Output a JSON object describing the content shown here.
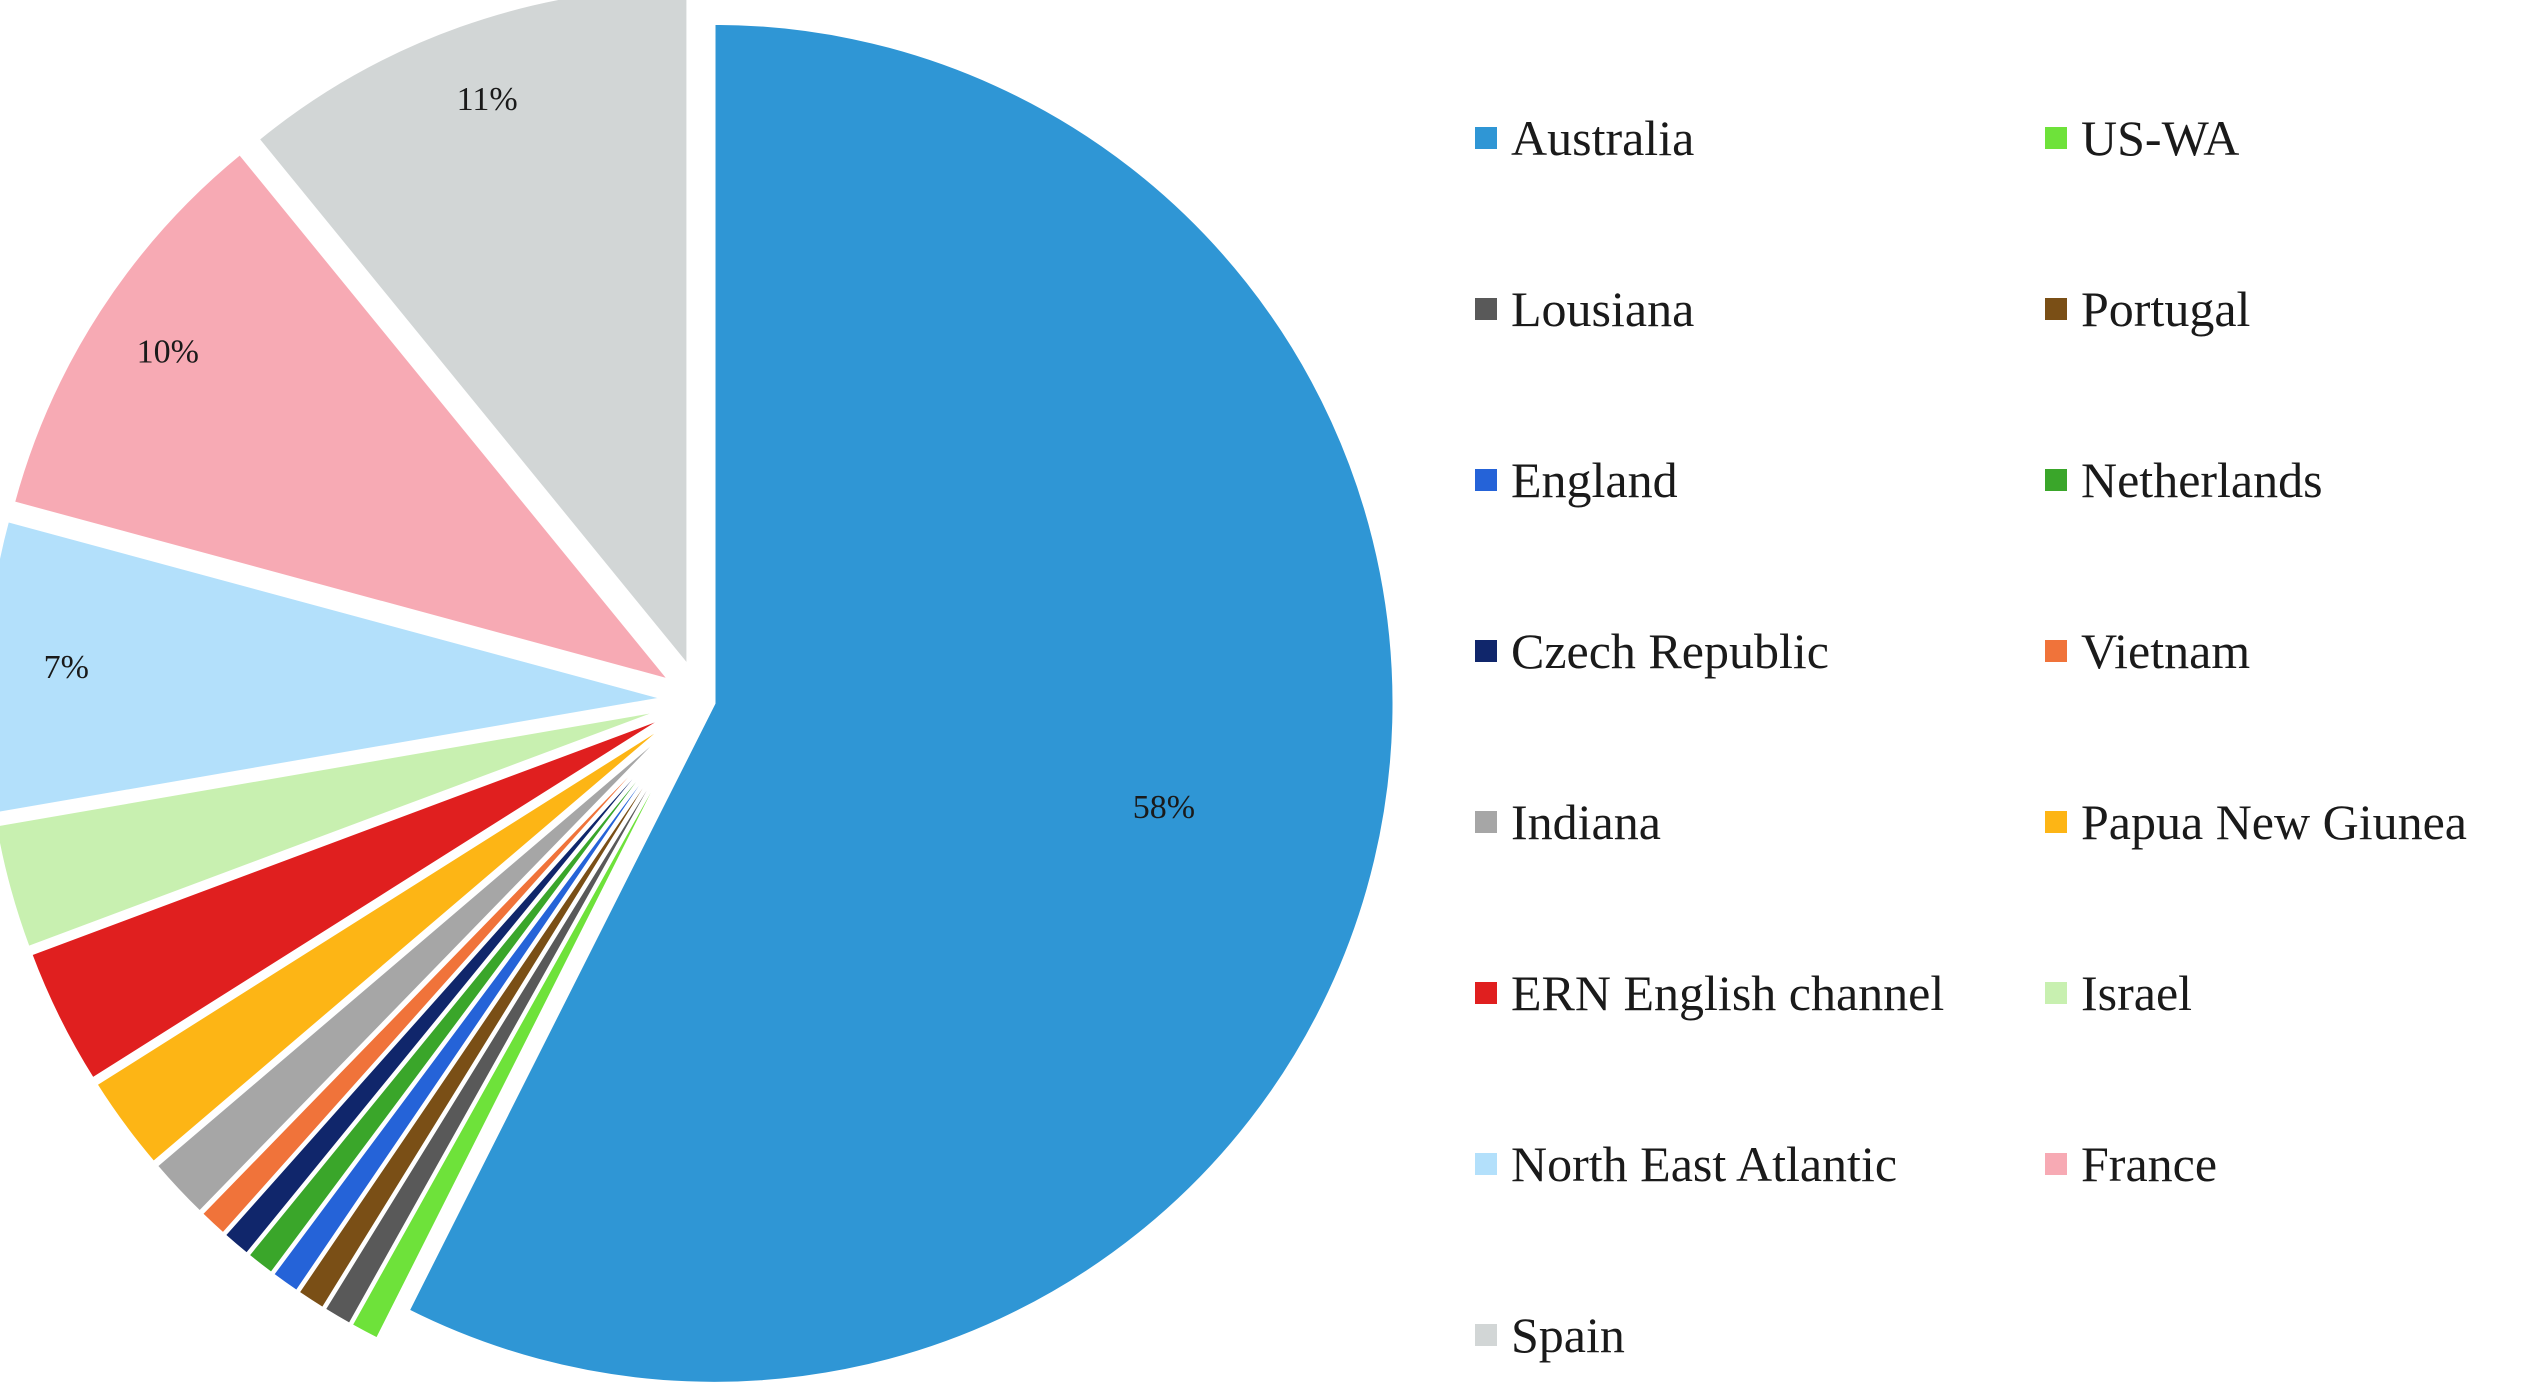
{
  "chart_data": {
    "type": "pie",
    "title": "",
    "slices": [
      {
        "name": "Australia",
        "value": 58,
        "label": "58%",
        "color": "#2f96d5",
        "exploded": false
      },
      {
        "name": "US-WA",
        "value": 0.7,
        "label": "",
        "color": "#6ee23a",
        "exploded": true
      },
      {
        "name": "Lousiana",
        "value": 0.7,
        "label": "",
        "color": "#595959",
        "exploded": true
      },
      {
        "name": "Portugal",
        "value": 0.7,
        "label": "",
        "color": "#7a4f16",
        "exploded": true
      },
      {
        "name": "England",
        "value": 0.7,
        "label": "",
        "color": "#2563d8",
        "exploded": true
      },
      {
        "name": "Netherlands",
        "value": 0.7,
        "label": "",
        "color": "#3aa62a",
        "exploded": true
      },
      {
        "name": "Czech Republic",
        "value": 0.7,
        "label": "",
        "color": "#10266b",
        "exploded": true
      },
      {
        "name": "Vietnam",
        "value": 0.7,
        "label": "",
        "color": "#f0733a",
        "exploded": true
      },
      {
        "name": "Indiana",
        "value": 1.5,
        "label": "",
        "color": "#a6a6a6",
        "exploded": true
      },
      {
        "name": "Papua New Giunea",
        "value": 2.3,
        "label": "",
        "color": "#fdb515",
        "exploded": true
      },
      {
        "name": "ERN English channel",
        "value": 3.3,
        "label": "",
        "color": "#e01f1f",
        "exploded": true
      },
      {
        "name": "Israel",
        "value": 3.0,
        "label": "",
        "color": "#c8f0b0",
        "exploded": true
      },
      {
        "name": "North East Atlantic",
        "value": 7,
        "label": "7%",
        "color": "#b3e0fb",
        "exploded": true
      },
      {
        "name": "France",
        "value": 10,
        "label": "10%",
        "color": "#f7aab4",
        "exploded": true
      },
      {
        "name": "Spain",
        "value": 11,
        "label": "11%",
        "color": "#d2d6d6",
        "exploded": true
      }
    ],
    "legend": {
      "placement": "right",
      "columns": 2,
      "order": [
        "Australia",
        "US-WA",
        "Lousiana",
        "Portugal",
        "England",
        "Netherlands",
        "Czech Republic",
        "Vietnam",
        "Indiana",
        "Papua New Giunea",
        "ERN English channel",
        "Israel",
        "North East Atlantic",
        "France",
        "Spain"
      ]
    }
  }
}
